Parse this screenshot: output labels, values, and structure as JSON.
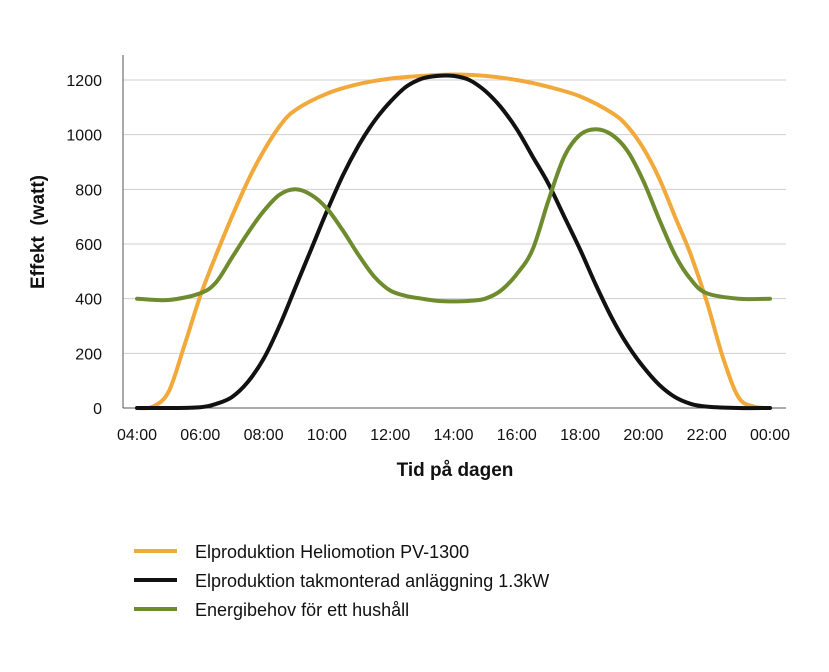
{
  "chart_data": {
    "type": "line",
    "xlabel": "Tid på dagen",
    "ylabel": "Effekt  (watt)",
    "x_tick_labels": [
      "04:00",
      "06:00",
      "08:00",
      "10:00",
      "12:00",
      "14:00",
      "16:00",
      "18:00",
      "20:00",
      "22:00",
      "00:00"
    ],
    "x_ticks_hours": [
      4,
      6,
      8,
      10,
      12,
      14,
      16,
      18,
      20,
      22,
      24
    ],
    "xlim": [
      4,
      24
    ],
    "ylim": [
      0,
      1200
    ],
    "y_ticks": [
      0,
      200,
      400,
      600,
      800,
      1000,
      1200
    ],
    "grid": "horizontal",
    "legend_position": "bottom",
    "series": [
      {
        "name": "Elproduktion Heliomotion PV-1300",
        "color": "#F2A93B",
        "x": [
          4,
          4.5,
          5,
          5.5,
          6,
          6.5,
          7,
          7.5,
          8,
          8.5,
          9,
          10,
          11,
          12,
          13,
          14,
          15,
          16,
          17,
          18,
          19,
          19.5,
          20,
          20.5,
          21,
          21.5,
          22,
          22.5,
          23,
          23.5,
          24
        ],
        "values": [
          0,
          5,
          60,
          230,
          410,
          560,
          700,
          830,
          940,
          1030,
          1090,
          1150,
          1185,
          1205,
          1215,
          1220,
          1215,
          1200,
          1175,
          1140,
          1080,
          1030,
          950,
          840,
          700,
          560,
          390,
          190,
          40,
          5,
          0
        ]
      },
      {
        "name": "Elproduktion takmonterad anläggning 1.3kW",
        "color": "#111111",
        "x": [
          4,
          5,
          6,
          6.5,
          7,
          7.5,
          8,
          8.5,
          9,
          9.5,
          10,
          10.5,
          11,
          11.5,
          12,
          12.5,
          13,
          13.5,
          14,
          14.5,
          15,
          15.5,
          16,
          16.5,
          17,
          17.5,
          18,
          18.5,
          19,
          19.5,
          20,
          20.5,
          21,
          21.5,
          22,
          23,
          24
        ],
        "values": [
          0,
          0,
          3,
          15,
          40,
          95,
          180,
          300,
          440,
          580,
          720,
          850,
          960,
          1050,
          1120,
          1175,
          1205,
          1215,
          1215,
          1200,
          1160,
          1100,
          1020,
          920,
          820,
          700,
          580,
          450,
          330,
          230,
          150,
          85,
          40,
          15,
          5,
          0,
          0
        ]
      },
      {
        "name": "Energibehov för ett hushåll",
        "color": "#6E8B2E",
        "x": [
          4,
          5,
          6,
          6.5,
          7,
          7.5,
          8,
          8.5,
          9,
          9.5,
          10,
          10.5,
          11,
          11.5,
          12,
          12.5,
          13,
          13.5,
          14,
          14.5,
          15,
          15.5,
          16,
          16.5,
          17,
          17.5,
          18,
          18.5,
          19,
          19.5,
          20,
          20.5,
          21,
          21.5,
          22,
          23,
          24
        ],
        "values": [
          400,
          395,
          420,
          460,
          550,
          640,
          720,
          780,
          800,
          780,
          730,
          650,
          560,
          480,
          430,
          410,
          400,
          392,
          390,
          392,
          400,
          430,
          490,
          580,
          760,
          920,
          1000,
          1020,
          1000,
          940,
          830,
          690,
          560,
          470,
          420,
          400,
          400
        ]
      }
    ]
  }
}
